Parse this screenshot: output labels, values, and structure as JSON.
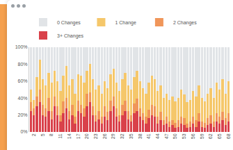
{
  "chart_data": {
    "type": "bar",
    "stacked": true,
    "grid": false,
    "legend": "top-left",
    "categories": [
      null,
      "2",
      null,
      null,
      "5",
      null,
      null,
      "8",
      null,
      null,
      "11",
      null,
      null,
      "14",
      null,
      null,
      "17",
      null,
      null,
      "20",
      null,
      null,
      "23",
      null,
      null,
      "26",
      null,
      null,
      "29",
      null,
      null,
      "32",
      null,
      null,
      "35",
      null,
      null,
      "38",
      null,
      null,
      "41",
      null,
      null,
      "44",
      null,
      null,
      "47",
      null,
      null,
      "50",
      null,
      null,
      "53",
      null,
      null,
      "56",
      null,
      null,
      "59",
      null,
      null,
      "62",
      null,
      null,
      "65",
      null,
      null,
      "68"
    ],
    "ylim": [
      0,
      100
    ],
    "yticks": [
      {
        "value": 0,
        "label": "0%"
      },
      {
        "value": 20,
        "label": "20%"
      },
      {
        "value": 40,
        "label": "40%"
      },
      {
        "value": 60,
        "label": "60%"
      },
      {
        "value": 80,
        "label": "80%"
      },
      {
        "value": 100,
        "label": "100%"
      }
    ],
    "series": [
      {
        "name": "0 Changes",
        "color": "#e1e4e7",
        "values": [
          50,
          62,
          35,
          15,
          38,
          45,
          30,
          42,
          28,
          40,
          52,
          34,
          22,
          45,
          38,
          55,
          32,
          34,
          42,
          28,
          20,
          38,
          50,
          45,
          55,
          40,
          48,
          32,
          25,
          42,
          52,
          38,
          30,
          45,
          50,
          35,
          28,
          40,
          48,
          55,
          42,
          34,
          38,
          52,
          45,
          60,
          55,
          62,
          58,
          64,
          60,
          50,
          56,
          65,
          62,
          52,
          58,
          45,
          60,
          64,
          55,
          48,
          60,
          42,
          50,
          38,
          55,
          40
        ]
      },
      {
        "name": "1 Change",
        "color": "#f5c76a",
        "values": [
          15,
          10,
          23,
          35,
          30,
          27,
          30,
          33,
          30,
          30,
          28,
          30,
          38,
          30,
          30,
          27,
          31,
          34,
          30,
          27,
          33,
          32,
          30,
          30,
          27,
          30,
          28,
          31,
          33,
          30,
          28,
          30,
          33,
          30,
          30,
          31,
          33,
          32,
          30,
          27,
          32,
          34,
          32,
          30,
          31,
          26,
          27,
          26,
          28,
          25,
          26,
          32,
          28,
          25,
          26,
          30,
          28,
          33,
          28,
          25,
          29,
          32,
          28,
          36,
          32,
          38,
          29,
          38
        ]
      },
      {
        "name": "2 Changes",
        "color": "#f0965a",
        "values": [
          10,
          8,
          12,
          15,
          12,
          10,
          15,
          10,
          12,
          10,
          8,
          14,
          12,
          10,
          12,
          8,
          12,
          10,
          10,
          15,
          12,
          10,
          8,
          10,
          8,
          12,
          10,
          12,
          12,
          10,
          8,
          12,
          12,
          10,
          8,
          12,
          14,
          10,
          8,
          8,
          10,
          12,
          12,
          8,
          10,
          6,
          8,
          6,
          6,
          6,
          8,
          8,
          8,
          5,
          6,
          8,
          8,
          10,
          6,
          6,
          8,
          10,
          6,
          10,
          8,
          10,
          8,
          10
        ]
      },
      {
        "name": "3+ Changes",
        "color": "#d9414a",
        "values": [
          25,
          20,
          30,
          35,
          20,
          18,
          25,
          15,
          30,
          20,
          12,
          22,
          28,
          15,
          20,
          10,
          25,
          22,
          18,
          30,
          35,
          20,
          12,
          15,
          10,
          18,
          14,
          25,
          30,
          18,
          12,
          20,
          25,
          15,
          12,
          22,
          25,
          18,
          14,
          10,
          16,
          20,
          18,
          10,
          14,
          8,
          10,
          6,
          8,
          5,
          6,
          10,
          8,
          5,
          6,
          10,
          6,
          12,
          6,
          5,
          8,
          10,
          6,
          12,
          10,
          14,
          8,
          12
        ]
      }
    ]
  }
}
